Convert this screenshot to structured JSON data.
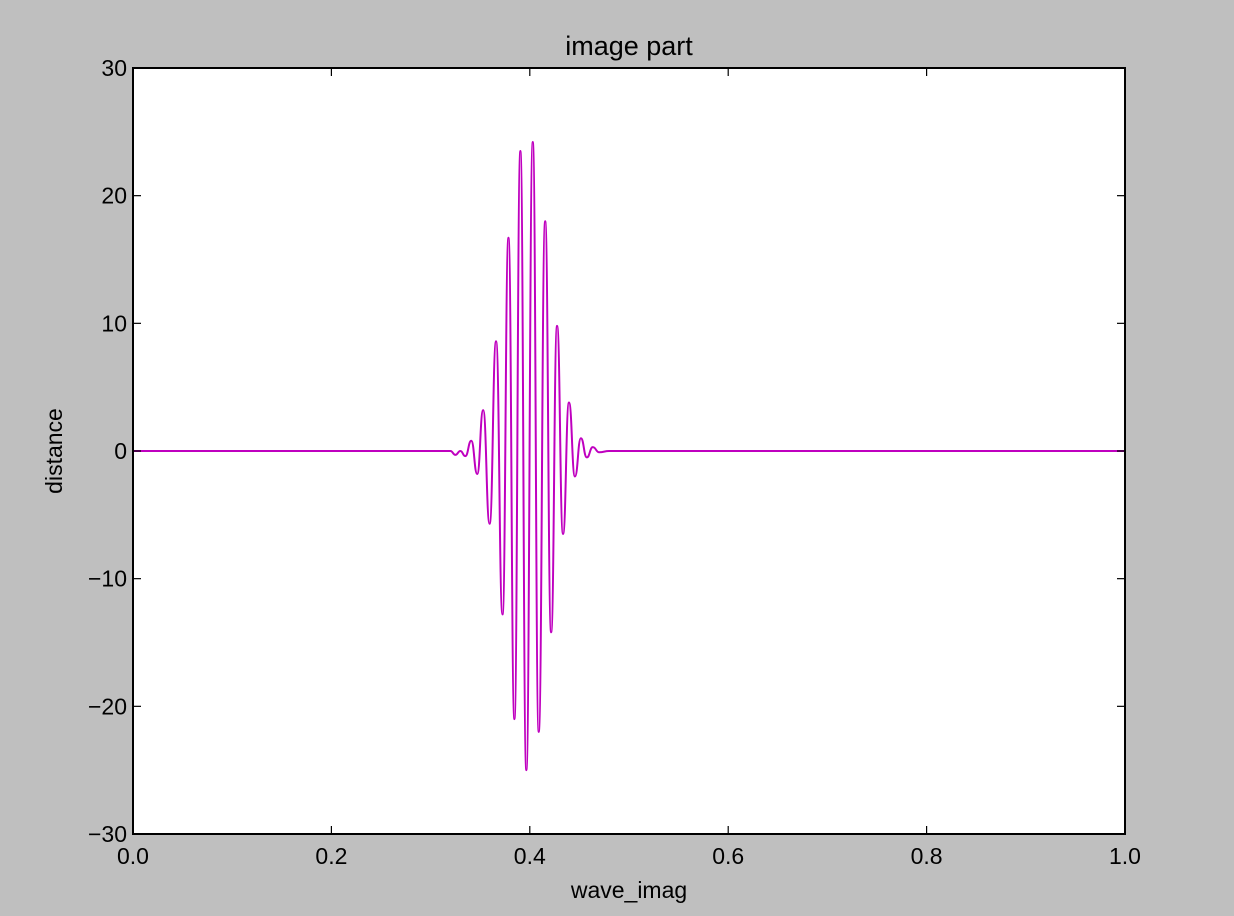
{
  "chart_data": {
    "type": "line",
    "title": "image part",
    "xlabel": "wave_imag",
    "ylabel": "distance",
    "xlim": [
      0.0,
      1.0
    ],
    "ylim": [
      -30,
      30
    ],
    "xticks": [
      "0.0",
      "0.2",
      "0.4",
      "0.6",
      "0.8",
      "1.0"
    ],
    "yticks": [
      "30",
      "20",
      "10",
      "0",
      "−10",
      "−20",
      "−30"
    ],
    "grid": false,
    "series": [
      {
        "color": "#bf00bf",
        "x": [
          0.0,
          0.32,
          0.325,
          0.33,
          0.335,
          0.341,
          0.347,
          0.353,
          0.3595,
          0.366,
          0.3725,
          0.3785,
          0.3845,
          0.3905,
          0.3965,
          0.403,
          0.409,
          0.4155,
          0.4215,
          0.4275,
          0.4335,
          0.4395,
          0.4455,
          0.4515,
          0.4575,
          0.4635,
          0.47,
          0.48,
          1.0
        ],
        "y": [
          0.0,
          0.0,
          -0.3,
          0.0,
          -0.4,
          0.8,
          -1.8,
          3.2,
          -5.7,
          8.6,
          -12.8,
          16.7,
          -21.0,
          23.5,
          -25.0,
          24.2,
          -22.0,
          18.0,
          -14.2,
          9.8,
          -6.5,
          3.8,
          -2.0,
          1.0,
          -0.5,
          0.3,
          -0.1,
          0.0,
          0.0
        ]
      }
    ]
  }
}
